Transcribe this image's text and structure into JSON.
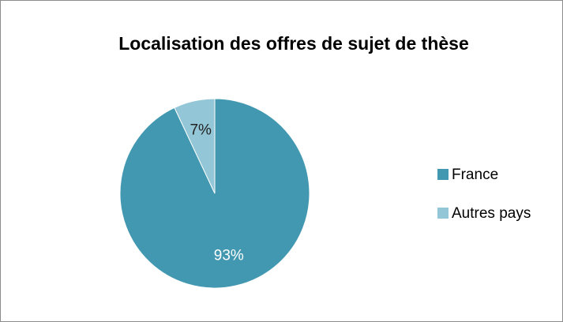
{
  "chart_data": {
    "type": "pie",
    "title": "Localisation des offres de sujet de thèse",
    "categories": [
      "France",
      "Autres pays"
    ],
    "values": [
      93,
      7
    ],
    "value_labels": [
      "93%",
      "7%"
    ],
    "colors": [
      "#4398b1",
      "#93c6d6"
    ],
    "label_colors": [
      "#ffffff",
      "#222222"
    ],
    "legend": "right"
  }
}
